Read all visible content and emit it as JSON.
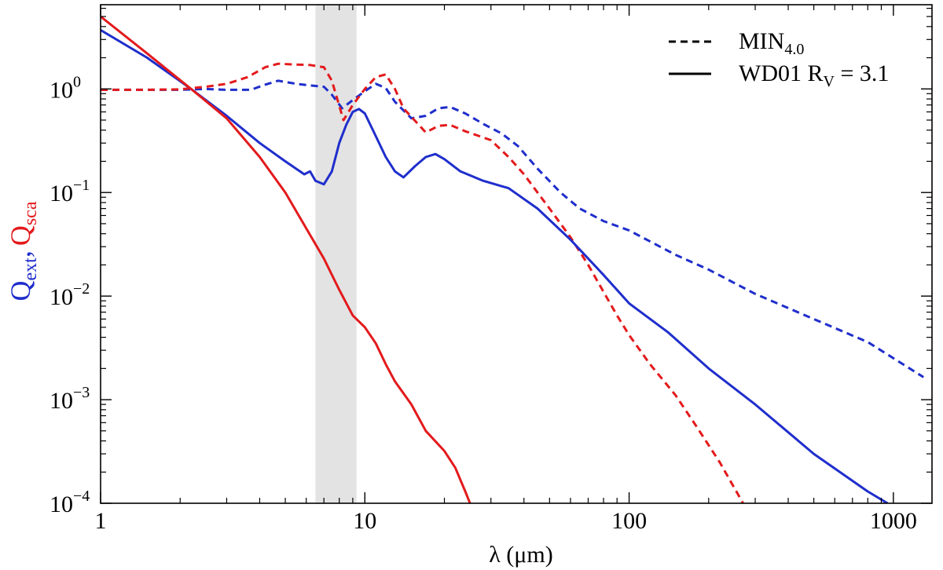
{
  "chart_data": {
    "type": "line",
    "xscale": "log",
    "yscale": "log",
    "xlim": [
      1,
      1400
    ],
    "ylim": [
      0.0001,
      6.5
    ],
    "xlabel": "λ (μm)",
    "ylabel": {
      "ext_base": "Q",
      "ext_sub": "ext",
      "separator": ",",
      "sca_base": "Q",
      "sca_sub": "sca",
      "ext_color": "#1f2ecc",
      "sca_color": "#e31a1c"
    },
    "x_ticks": [
      {
        "value": 1,
        "label": "1"
      },
      {
        "value": 10,
        "label": "10"
      },
      {
        "value": 100,
        "label": "100"
      },
      {
        "value": 1000,
        "label": "1000"
      }
    ],
    "y_ticks": [
      {
        "value": 1,
        "base": "10",
        "exp": "0"
      },
      {
        "value": 0.1,
        "base": "10",
        "exp": "−1"
      },
      {
        "value": 0.01,
        "base": "10",
        "exp": "−2"
      },
      {
        "value": 0.001,
        "base": "10",
        "exp": "−3"
      },
      {
        "value": 0.0001,
        "base": "10",
        "exp": "−4"
      }
    ],
    "shaded_band": {
      "x_range": [
        6.5,
        9.3
      ],
      "color": "#e3e3e3"
    },
    "legend": {
      "placement": "top-right",
      "entries": [
        {
          "style": "dashed",
          "label_main": "MIN",
          "label_sub": "4.0"
        },
        {
          "style": "solid",
          "label_main": "WD01 R",
          "label_sub": "V",
          "label_tail": " = 3.1"
        }
      ]
    },
    "series": [
      {
        "name": "MIN4.0 Qext",
        "quantity": "Qext",
        "model": "MIN4.0",
        "style": "dashed",
        "color": "#1f2ecc",
        "points": [
          [
            1,
            0.98
          ],
          [
            1.5,
            0.98
          ],
          [
            2,
            0.98
          ],
          [
            2.5,
            1.0
          ],
          [
            3,
            0.98
          ],
          [
            3.7,
            0.98
          ],
          [
            4.2,
            1.1
          ],
          [
            4.7,
            1.2
          ],
          [
            5.5,
            1.12
          ],
          [
            6.2,
            1.08
          ],
          [
            7,
            1.05
          ],
          [
            7.5,
            0.88
          ],
          [
            8.2,
            0.65
          ],
          [
            9,
            0.78
          ],
          [
            10,
            0.95
          ],
          [
            11,
            1.12
          ],
          [
            12,
            1.02
          ],
          [
            13,
            0.75
          ],
          [
            15,
            0.52
          ],
          [
            17,
            0.55
          ],
          [
            19,
            0.65
          ],
          [
            21,
            0.67
          ],
          [
            24,
            0.58
          ],
          [
            28,
            0.46
          ],
          [
            33,
            0.37
          ],
          [
            38,
            0.28
          ],
          [
            45,
            0.17
          ],
          [
            55,
            0.1
          ],
          [
            65,
            0.07
          ],
          [
            80,
            0.053
          ],
          [
            100,
            0.043
          ],
          [
            150,
            0.025
          ],
          [
            200,
            0.018
          ],
          [
            300,
            0.0105
          ],
          [
            500,
            0.006
          ],
          [
            800,
            0.0036
          ],
          [
            1300,
            0.00165
          ]
        ]
      },
      {
        "name": "MIN4.0 Qsca",
        "quantity": "Qsca",
        "model": "MIN4.0",
        "style": "dashed",
        "color": "#e31a1c",
        "points": [
          [
            1,
            0.98
          ],
          [
            1.5,
            0.98
          ],
          [
            2,
            0.99
          ],
          [
            2.5,
            1.05
          ],
          [
            3,
            1.12
          ],
          [
            3.6,
            1.3
          ],
          [
            4.2,
            1.62
          ],
          [
            4.7,
            1.75
          ],
          [
            5.5,
            1.72
          ],
          [
            6.2,
            1.7
          ],
          [
            7,
            1.62
          ],
          [
            7.5,
            1.2
          ],
          [
            8.3,
            0.5
          ],
          [
            9,
            0.7
          ],
          [
            10,
            1.0
          ],
          [
            11,
            1.3
          ],
          [
            12,
            1.38
          ],
          [
            13,
            1.0
          ],
          [
            14,
            0.65
          ],
          [
            16,
            0.45
          ],
          [
            17,
            0.38
          ],
          [
            19,
            0.44
          ],
          [
            21,
            0.45
          ],
          [
            24,
            0.39
          ],
          [
            30,
            0.32
          ],
          [
            35,
            0.22
          ],
          [
            40,
            0.15
          ],
          [
            45,
            0.1
          ],
          [
            50,
            0.07
          ],
          [
            60,
            0.037
          ],
          [
            70,
            0.02
          ],
          [
            80,
            0.011
          ],
          [
            90,
            0.0065
          ],
          [
            100,
            0.0042
          ],
          [
            120,
            0.0022
          ],
          [
            150,
            0.0011
          ],
          [
            180,
            0.00055
          ],
          [
            220,
            0.00025
          ],
          [
            270,
            0.0001
          ]
        ]
      },
      {
        "name": "WD01 Rv=3.1 Qext",
        "quantity": "Qext",
        "model": "WD01 Rv = 3.1",
        "style": "solid",
        "color": "#1f2ecc",
        "points": [
          [
            1,
            3.7
          ],
          [
            1.5,
            2.0
          ],
          [
            2.2,
            1.0
          ],
          [
            3,
            0.55
          ],
          [
            4,
            0.3
          ],
          [
            5,
            0.2
          ],
          [
            5.9,
            0.15
          ],
          [
            6.2,
            0.16
          ],
          [
            6.5,
            0.13
          ],
          [
            7,
            0.12
          ],
          [
            7.5,
            0.16
          ],
          [
            8,
            0.3
          ],
          [
            8.5,
            0.45
          ],
          [
            9,
            0.6
          ],
          [
            9.5,
            0.64
          ],
          [
            10,
            0.58
          ],
          [
            11,
            0.35
          ],
          [
            12,
            0.22
          ],
          [
            13,
            0.16
          ],
          [
            14,
            0.14
          ],
          [
            15.5,
            0.18
          ],
          [
            17,
            0.22
          ],
          [
            18.5,
            0.235
          ],
          [
            20,
            0.21
          ],
          [
            23,
            0.16
          ],
          [
            28,
            0.13
          ],
          [
            35,
            0.11
          ],
          [
            45,
            0.07
          ],
          [
            60,
            0.035
          ],
          [
            80,
            0.016
          ],
          [
            100,
            0.0085
          ],
          [
            140,
            0.0045
          ],
          [
            200,
            0.002
          ],
          [
            300,
            0.0009
          ],
          [
            500,
            0.0003
          ],
          [
            800,
            0.00013
          ],
          [
            950,
            0.0001
          ]
        ]
      },
      {
        "name": "WD01 Rv=3.1 Qsca",
        "quantity": "Qsca",
        "model": "WD01 Rv = 3.1",
        "style": "solid",
        "color": "#e31a1c",
        "points": [
          [
            1,
            5.0
          ],
          [
            1.5,
            2.2
          ],
          [
            2.2,
            1.0
          ],
          [
            3,
            0.52
          ],
          [
            4,
            0.22
          ],
          [
            5,
            0.1
          ],
          [
            6,
            0.045
          ],
          [
            7,
            0.023
          ],
          [
            8,
            0.0115
          ],
          [
            9,
            0.0065
          ],
          [
            10,
            0.005
          ],
          [
            11,
            0.0035
          ],
          [
            12,
            0.0022
          ],
          [
            13,
            0.0015
          ],
          [
            15,
            0.0009
          ],
          [
            17,
            0.0005
          ],
          [
            20,
            0.00032
          ],
          [
            22,
            0.00022
          ],
          [
            24,
            0.00013
          ],
          [
            25,
            0.0001
          ]
        ]
      }
    ]
  }
}
